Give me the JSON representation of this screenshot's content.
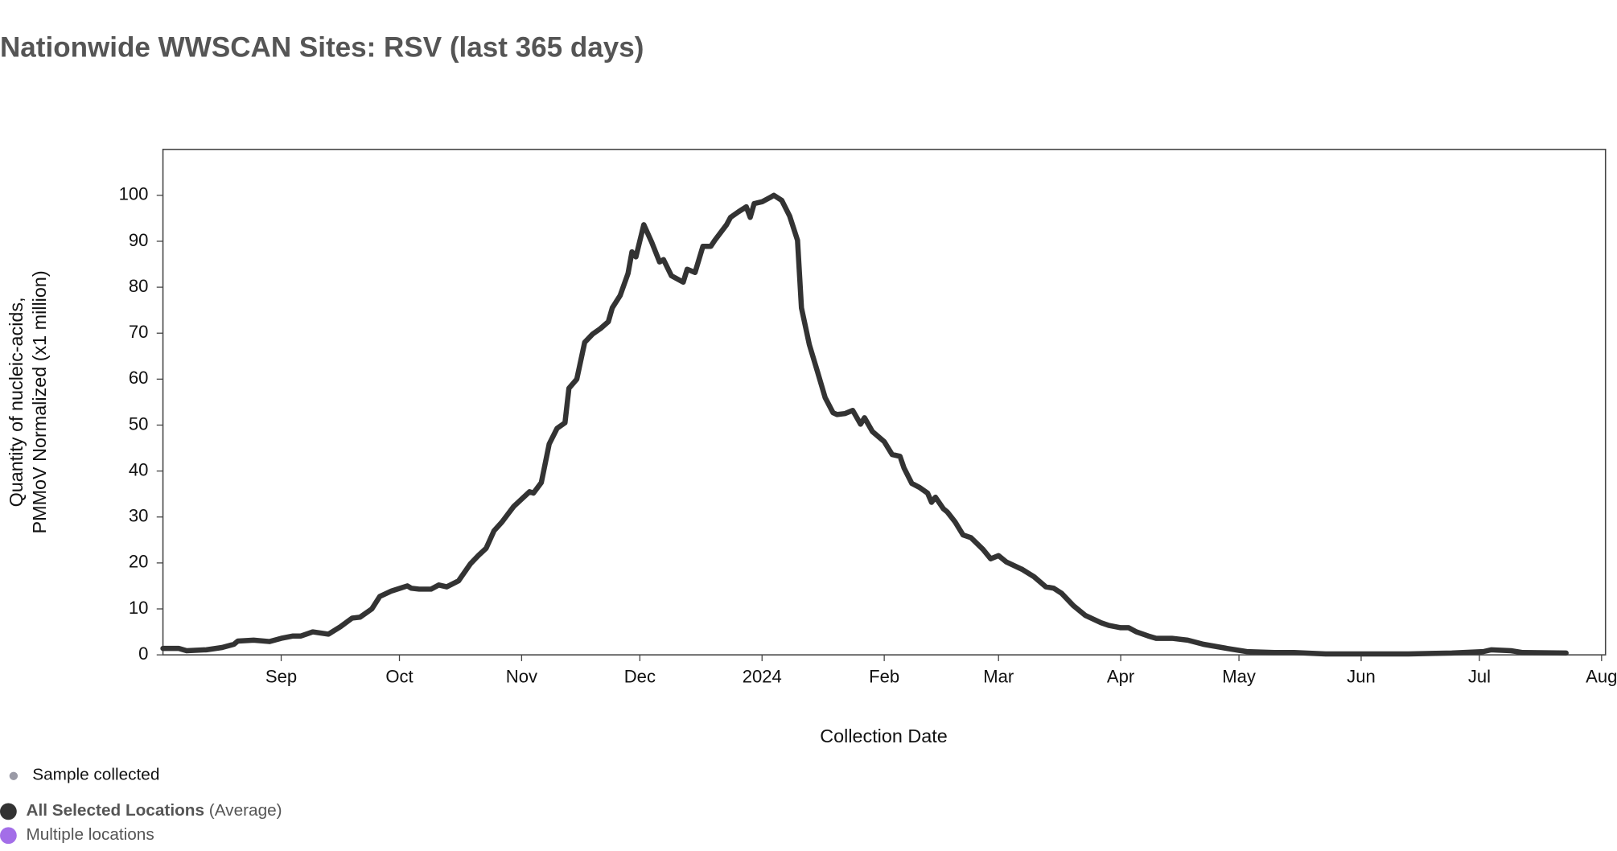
{
  "chart_data": {
    "type": "line",
    "title": "Nationwide WWSCAN Sites: RSV (last 365 days)",
    "x_label": "Collection Date",
    "y_label": [
      "Quantity of nucleic-acids,",
      "PMMoV Normalized (x1 million)"
    ],
    "xlim": [
      "2023-08-02",
      "2024-08-02"
    ],
    "xticks": [
      {
        "value": "2023-09-01",
        "label": "Sep"
      },
      {
        "value": "2023-10-01",
        "label": "Oct"
      },
      {
        "value": "2023-11-01",
        "label": "Nov"
      },
      {
        "value": "2023-12-01",
        "label": "Dec"
      },
      {
        "value": "2024-01-01",
        "label": "2024"
      },
      {
        "value": "2024-02-01",
        "label": "Feb"
      },
      {
        "value": "2024-03-01",
        "label": "Mar"
      },
      {
        "value": "2024-04-01",
        "label": "Apr"
      },
      {
        "value": "2024-05-01",
        "label": "May"
      },
      {
        "value": "2024-06-01",
        "label": "Jun"
      },
      {
        "value": "2024-07-01",
        "label": "Jul"
      },
      {
        "value": "2024-08-01",
        "label": "Aug"
      }
    ],
    "ylim": [
      0,
      110
    ],
    "yticks": [
      0,
      10,
      20,
      30,
      40,
      50,
      60,
      70,
      80,
      90,
      100
    ],
    "x": [
      "2023-08-02",
      "2023-08-06",
      "2023-08-08",
      "2023-08-13",
      "2023-08-17",
      "2023-08-20",
      "2023-08-21",
      "2023-08-25",
      "2023-08-29",
      "2023-09-01",
      "2023-09-04",
      "2023-09-06",
      "2023-09-09",
      "2023-09-13",
      "2023-09-16",
      "2023-09-19",
      "2023-09-21",
      "2023-09-24",
      "2023-09-26",
      "2023-09-29",
      "2023-10-03",
      "2023-10-04",
      "2023-10-06",
      "2023-10-09",
      "2023-10-11",
      "2023-10-13",
      "2023-10-16",
      "2023-10-19",
      "2023-10-21",
      "2023-10-23",
      "2023-10-25",
      "2023-10-27",
      "2023-10-30",
      "2023-11-01",
      "2023-11-03",
      "2023-11-04",
      "2023-11-06",
      "2023-11-08",
      "2023-11-10",
      "2023-11-12",
      "2023-11-13",
      "2023-11-15",
      "2023-11-17",
      "2023-11-19",
      "2023-11-21",
      "2023-11-23",
      "2023-11-24",
      "2023-11-26",
      "2023-11-28",
      "2023-11-29",
      "2023-11-30",
      "2023-12-02",
      "2023-12-04",
      "2023-12-06",
      "2023-12-07",
      "2023-12-09",
      "2023-12-12",
      "2023-12-13",
      "2023-12-15",
      "2023-12-17",
      "2023-12-19",
      "2023-12-20",
      "2023-12-23",
      "2023-12-24",
      "2023-12-26",
      "2023-12-28",
      "2023-12-29",
      "2023-12-30",
      "2024-01-01",
      "2024-01-03",
      "2024-01-04",
      "2024-01-06",
      "2024-01-08",
      "2024-01-10",
      "2024-01-11",
      "2024-01-13",
      "2024-01-15",
      "2024-01-17",
      "2024-01-19",
      "2024-01-20",
      "2024-01-22",
      "2024-01-24",
      "2024-01-26",
      "2024-01-27",
      "2024-01-29",
      "2024-02-01",
      "2024-02-03",
      "2024-02-05",
      "2024-02-06",
      "2024-02-08",
      "2024-02-10",
      "2024-02-12",
      "2024-02-13",
      "2024-02-14",
      "2024-02-16",
      "2024-02-17",
      "2024-02-19",
      "2024-02-21",
      "2024-02-23",
      "2024-02-26",
      "2024-02-28",
      "2024-03-01",
      "2024-03-03",
      "2024-03-07",
      "2024-03-10",
      "2024-03-13",
      "2024-03-15",
      "2024-03-17",
      "2024-03-20",
      "2024-03-23",
      "2024-03-27",
      "2024-03-29",
      "2024-04-01",
      "2024-04-03",
      "2024-04-05",
      "2024-04-08",
      "2024-04-10",
      "2024-04-14",
      "2024-04-18",
      "2024-04-22",
      "2024-04-28",
      "2024-05-03",
      "2024-05-10",
      "2024-05-15",
      "2024-05-23",
      "2024-06-03",
      "2024-06-13",
      "2024-06-24",
      "2024-07-02",
      "2024-07-04",
      "2024-07-09",
      "2024-07-12",
      "2024-07-23"
    ],
    "series": [
      {
        "name": "All Selected Locations",
        "color": "#333333",
        "values": [
          1.4,
          1.4,
          0.9,
          1.1,
          1.6,
          2.3,
          3.0,
          3.2,
          2.9,
          3.6,
          4.1,
          4.1,
          5.0,
          4.5,
          6.1,
          8.0,
          8.2,
          10.0,
          12.7,
          13.9,
          15.0,
          14.5,
          14.3,
          14.3,
          15.2,
          14.8,
          16.1,
          19.8,
          21.6,
          23.2,
          27.0,
          28.9,
          32.3,
          33.9,
          35.5,
          35.2,
          37.5,
          45.9,
          49.3,
          50.5,
          58.0,
          60.0,
          68.0,
          69.8,
          71.0,
          72.5,
          75.5,
          78.2,
          83.0,
          87.7,
          86.6,
          93.6,
          89.8,
          85.5,
          86.0,
          82.5,
          81.1,
          83.9,
          83.2,
          88.9,
          88.9,
          90.2,
          93.6,
          95.2,
          96.4,
          97.5,
          95.2,
          98.2,
          98.6,
          99.5,
          100.0,
          98.9,
          95.5,
          90.2,
          75.5,
          67.5,
          61.8,
          56.0,
          52.7,
          52.3,
          52.5,
          53.2,
          50.2,
          51.6,
          48.6,
          46.4,
          43.6,
          43.2,
          40.7,
          37.3,
          36.4,
          35.2,
          33.2,
          34.3,
          31.8,
          31.1,
          28.9,
          26.1,
          25.5,
          23.0,
          20.9,
          21.6,
          20.2,
          18.6,
          17.0,
          14.8,
          14.5,
          13.4,
          10.7,
          8.6,
          7.0,
          6.4,
          5.9,
          5.9,
          5.0,
          4.1,
          3.6,
          3.6,
          3.2,
          2.3,
          1.4,
          0.7,
          0.5,
          0.5,
          0.2,
          0.2,
          0.2,
          0.4,
          0.7,
          1.1,
          0.9,
          0.5,
          0.4
        ]
      }
    ],
    "legend": [
      {
        "name": "Sample collected",
        "color": "#9a9aa6"
      },
      {
        "name": "All Selected Locations",
        "suffix": "(Average)",
        "color": "#333333"
      },
      {
        "name": "Multiple locations",
        "color": "#a36ee8"
      }
    ]
  }
}
